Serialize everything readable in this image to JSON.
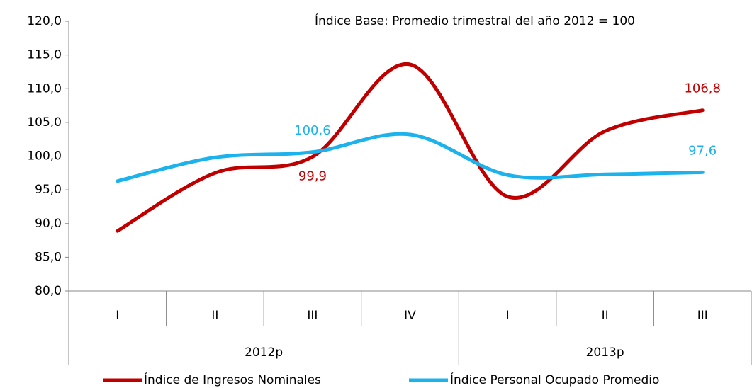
{
  "chart_data": {
    "type": "line",
    "title": "Índice Base: Promedio trimestral del año 2012 = 100",
    "categories": [
      "I",
      "II",
      "III",
      "IV",
      "I",
      "II",
      "III"
    ],
    "category_groups": [
      "2012p",
      "2012p",
      "2012p",
      "2012p",
      "2013p",
      "2013p",
      "2013p"
    ],
    "series": [
      {
        "name": "Índice de Ingresos Nominales",
        "color": "#c00000",
        "values": [
          88.9,
          97.5,
          99.9,
          113.6,
          94.0,
          103.7,
          106.8
        ],
        "value_labels": [
          null,
          null,
          "99,9",
          null,
          null,
          null,
          "106,8"
        ]
      },
      {
        "name": "Índice Personal Ocupado Promedio",
        "color": "#1cb2eb",
        "values": [
          96.3,
          99.8,
          100.6,
          103.2,
          97.2,
          97.3,
          97.6
        ],
        "value_labels": [
          null,
          null,
          "100,6",
          null,
          null,
          null,
          "97,6"
        ]
      }
    ],
    "ylim": [
      80,
      120
    ],
    "yticks": [
      {
        "value": 80,
        "label": "80,0"
      },
      {
        "value": 85,
        "label": "85,0"
      },
      {
        "value": 90,
        "label": "90,0"
      },
      {
        "value": 95,
        "label": "95,0"
      },
      {
        "value": 100,
        "label": "100,0"
      },
      {
        "value": 105,
        "label": "105,0"
      },
      {
        "value": 110,
        "label": "110,0"
      },
      {
        "value": 115,
        "label": "115,0"
      },
      {
        "value": 120,
        "label": "120,0"
      }
    ],
    "grid": false,
    "legend": "bottom",
    "smooth": true
  }
}
